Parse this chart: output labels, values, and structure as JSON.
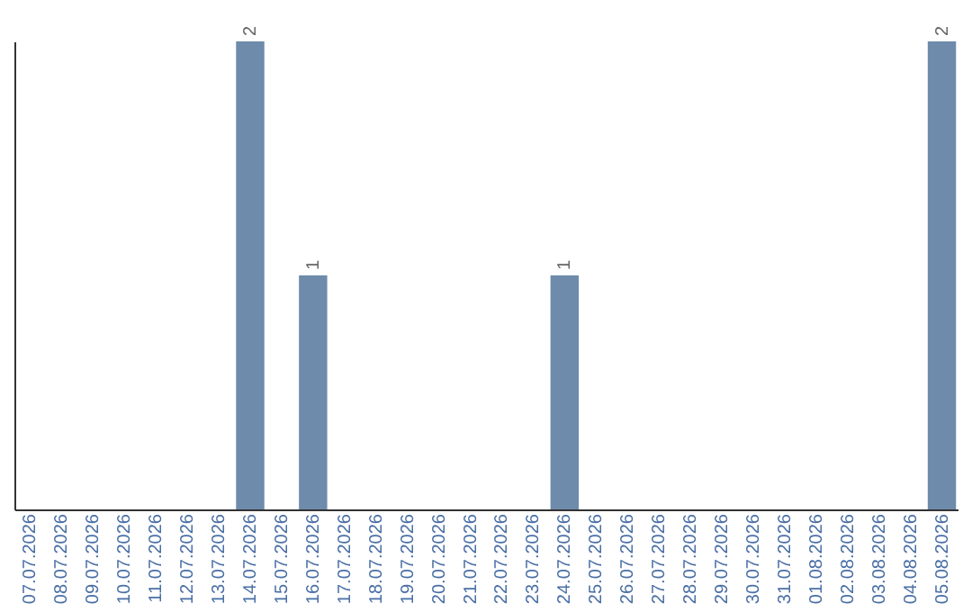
{
  "chart_data": {
    "type": "bar",
    "categories": [
      "07.07.2026",
      "08.07.2026",
      "09.07.2026",
      "10.07.2026",
      "11.07.2026",
      "12.07.2026",
      "13.07.2026",
      "14.07.2026",
      "15.07.2026",
      "16.07.2026",
      "17.07.2026",
      "18.07.2026",
      "19.07.2026",
      "20.07.2026",
      "21.07.2026",
      "22.07.2026",
      "23.07.2026",
      "24.07.2026",
      "25.07.2026",
      "26.07.2026",
      "27.07.2026",
      "28.07.2026",
      "29.07.2026",
      "30.07.2026",
      "31.07.2026",
      "01.08.2026",
      "02.08.2026",
      "03.08.2026",
      "04.08.2026",
      "05.08.2026"
    ],
    "values": [
      0,
      0,
      0,
      0,
      0,
      0,
      0,
      2,
      0,
      1,
      0,
      0,
      0,
      0,
      0,
      0,
      0,
      1,
      0,
      0,
      0,
      0,
      0,
      0,
      0,
      0,
      0,
      0,
      0,
      2
    ],
    "value_labels": [
      null,
      null,
      null,
      null,
      null,
      null,
      null,
      "2",
      null,
      "1",
      null,
      null,
      null,
      null,
      null,
      null,
      null,
      "1",
      null,
      null,
      null,
      null,
      null,
      null,
      null,
      null,
      null,
      null,
      null,
      "2"
    ],
    "color": "#6e8bab",
    "tick_labels": "x",
    "grid": false
  }
}
